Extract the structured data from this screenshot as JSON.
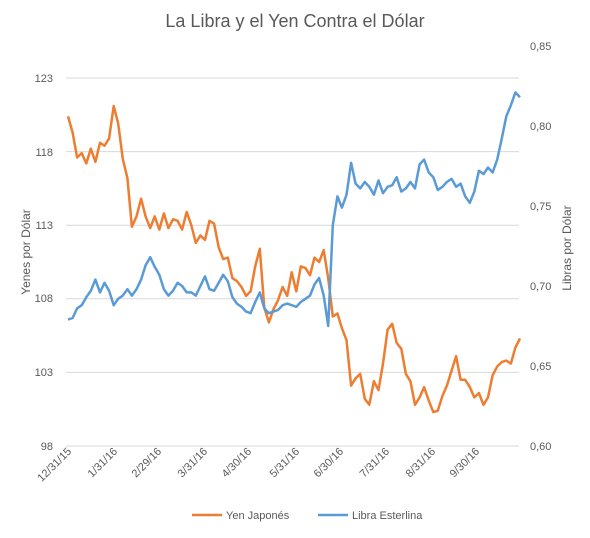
{
  "chart_data": {
    "type": "line",
    "title": "La Libra y el Yen Contra el Dólar",
    "ylabel_left": "Yenes por Dólar",
    "ylabel_right": "Libras por Dólar",
    "ylim_left": [
      98,
      123
    ],
    "ylim_right": [
      0.6,
      0.85
    ],
    "yticks_left": [
      "98",
      "103",
      "108",
      "113",
      "118",
      "123"
    ],
    "yticks_right": [
      "0,60",
      "0,65",
      "0,70",
      "0,75",
      "0,80",
      "0,85"
    ],
    "xticks": [
      "12/31/15",
      "1/31/16",
      "2/29/16",
      "3/31/16",
      "4/30/16",
      "5/31/16",
      "6/30/16",
      "7/31/16",
      "8/31/16",
      "9/30/16"
    ],
    "grid": true,
    "legend": "bottom",
    "series": [
      {
        "name": "Yen Japonés",
        "axis": "left",
        "color": "#ED7D31",
        "values": [
          120.4,
          119.3,
          117.6,
          117.9,
          117.2,
          118.2,
          117.3,
          118.6,
          118.4,
          118.9,
          121.1,
          119.9,
          117.5,
          116.2,
          112.9,
          113.6,
          114.8,
          113.6,
          112.8,
          113.6,
          112.7,
          113.8,
          112.8,
          113.4,
          113.3,
          112.7,
          113.9,
          113.0,
          111.8,
          112.3,
          112.0,
          113.3,
          113.1,
          111.5,
          110.7,
          110.8,
          109.4,
          109.2,
          108.8,
          108.2,
          108.5,
          110.2,
          111.4,
          107.4,
          106.4,
          107.3,
          107.9,
          108.8,
          108.2,
          109.8,
          108.5,
          110.2,
          110.1,
          109.6,
          110.8,
          110.5,
          111.3,
          109.4,
          106.8,
          107.0,
          106.0,
          105.2,
          102.1,
          102.6,
          102.9,
          101.2,
          100.8,
          102.4,
          101.8,
          103.6,
          105.9,
          106.3,
          105.0,
          104.6,
          102.9,
          102.4,
          100.8,
          101.3,
          102.0,
          101.1,
          100.3,
          100.4,
          101.4,
          102.1,
          103.1,
          104.1,
          102.5,
          102.5,
          102.0,
          101.3,
          101.6,
          100.8,
          101.3,
          102.8,
          103.4,
          103.7,
          103.8,
          103.6,
          104.7,
          105.3
        ]
      },
      {
        "name": "Libra Esterlina",
        "axis": "right",
        "color": "#5B9BD5",
        "values": [
          0.679,
          0.68,
          0.686,
          0.688,
          0.693,
          0.697,
          0.704,
          0.696,
          0.702,
          0.697,
          0.688,
          0.692,
          0.694,
          0.698,
          0.694,
          0.698,
          0.704,
          0.713,
          0.718,
          0.712,
          0.707,
          0.698,
          0.694,
          0.697,
          0.702,
          0.7,
          0.696,
          0.696,
          0.694,
          0.7,
          0.706,
          0.698,
          0.697,
          0.702,
          0.707,
          0.703,
          0.693,
          0.689,
          0.687,
          0.684,
          0.683,
          0.69,
          0.696,
          0.686,
          0.683,
          0.684,
          0.685,
          0.688,
          0.689,
          0.688,
          0.687,
          0.69,
          0.692,
          0.694,
          0.701,
          0.705,
          0.694,
          0.675,
          0.738,
          0.756,
          0.749,
          0.757,
          0.777,
          0.764,
          0.761,
          0.765,
          0.762,
          0.757,
          0.766,
          0.758,
          0.762,
          0.763,
          0.768,
          0.759,
          0.761,
          0.765,
          0.761,
          0.776,
          0.779,
          0.771,
          0.768,
          0.76,
          0.762,
          0.765,
          0.767,
          0.762,
          0.764,
          0.756,
          0.752,
          0.759,
          0.772,
          0.77,
          0.774,
          0.771,
          0.779,
          0.792,
          0.806,
          0.813,
          0.821,
          0.818
        ]
      }
    ]
  }
}
